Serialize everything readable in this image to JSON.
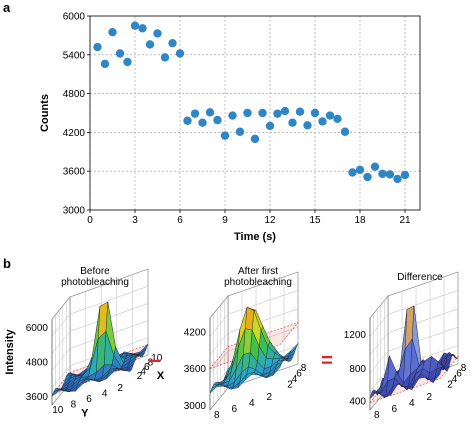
{
  "chart_data": [
    {
      "type": "scatter",
      "panel": "a",
      "xlabel": "Time (s)",
      "ylabel": "Counts",
      "xlim": [
        0,
        22
      ],
      "ylim": [
        3000,
        6000
      ],
      "xticks": [
        0,
        3,
        6,
        9,
        12,
        15,
        18,
        21
      ],
      "yticks": [
        3000,
        3600,
        4200,
        4800,
        5400,
        6000
      ],
      "grid": true,
      "color": "#2f86c6",
      "points": [
        [
          0.5,
          5520
        ],
        [
          1.0,
          5260
        ],
        [
          1.5,
          5750
        ],
        [
          2.0,
          5420
        ],
        [
          2.5,
          5290
        ],
        [
          3.0,
          5850
        ],
        [
          3.5,
          5810
        ],
        [
          4.0,
          5560
        ],
        [
          4.5,
          5730
        ],
        [
          5.0,
          5360
        ],
        [
          5.5,
          5580
        ],
        [
          6.0,
          5420
        ],
        [
          6.5,
          4380
        ],
        [
          7.0,
          4490
        ],
        [
          7.5,
          4350
        ],
        [
          8.0,
          4510
        ],
        [
          8.5,
          4390
        ],
        [
          9.0,
          4150
        ],
        [
          9.5,
          4460
        ],
        [
          10.0,
          4210
        ],
        [
          10.5,
          4500
        ],
        [
          11.0,
          4100
        ],
        [
          11.5,
          4500
        ],
        [
          12.0,
          4300
        ],
        [
          12.5,
          4490
        ],
        [
          13.0,
          4530
        ],
        [
          13.5,
          4350
        ],
        [
          14.0,
          4520
        ],
        [
          14.5,
          4310
        ],
        [
          15.0,
          4500
        ],
        [
          15.5,
          4370
        ],
        [
          16.0,
          4460
        ],
        [
          16.5,
          4410
        ],
        [
          17.0,
          4210
        ],
        [
          17.5,
          3580
        ],
        [
          18.0,
          3620
        ],
        [
          18.5,
          3510
        ],
        [
          19.0,
          3670
        ],
        [
          19.5,
          3560
        ],
        [
          20.0,
          3550
        ],
        [
          20.5,
          3480
        ],
        [
          21.0,
          3540
        ]
      ]
    },
    {
      "type": "surface3d",
      "panel": "b",
      "title": "Before\nphotobleaching",
      "zlabel": "Intensity",
      "zticks": [
        3600,
        4800,
        6000
      ],
      "xlabel": "X",
      "ylabel": "Y",
      "xticks": [
        2,
        4,
        6,
        8,
        10
      ],
      "yticks": [
        10,
        8,
        6,
        4,
        2
      ]
    },
    {
      "type": "surface3d",
      "panel": "b",
      "title": "After first\nphotobleaching",
      "zticks": [
        3000,
        3600,
        4200
      ],
      "xticks": [
        2,
        4,
        6,
        8
      ],
      "yticks": [
        8,
        6,
        4,
        2
      ]
    },
    {
      "type": "surface3d",
      "panel": "b",
      "title": "Difference",
      "zticks": [
        400,
        800,
        1200
      ],
      "xticks": [
        2,
        4,
        6,
        8
      ],
      "yticks": [
        8,
        6,
        4,
        2
      ]
    }
  ],
  "labels": {
    "panel_a": "a",
    "panel_b": "b"
  },
  "operators": {
    "minus": "–",
    "equals": "="
  },
  "colors": {
    "operator": "#e8202a",
    "plane": "#e03030"
  }
}
